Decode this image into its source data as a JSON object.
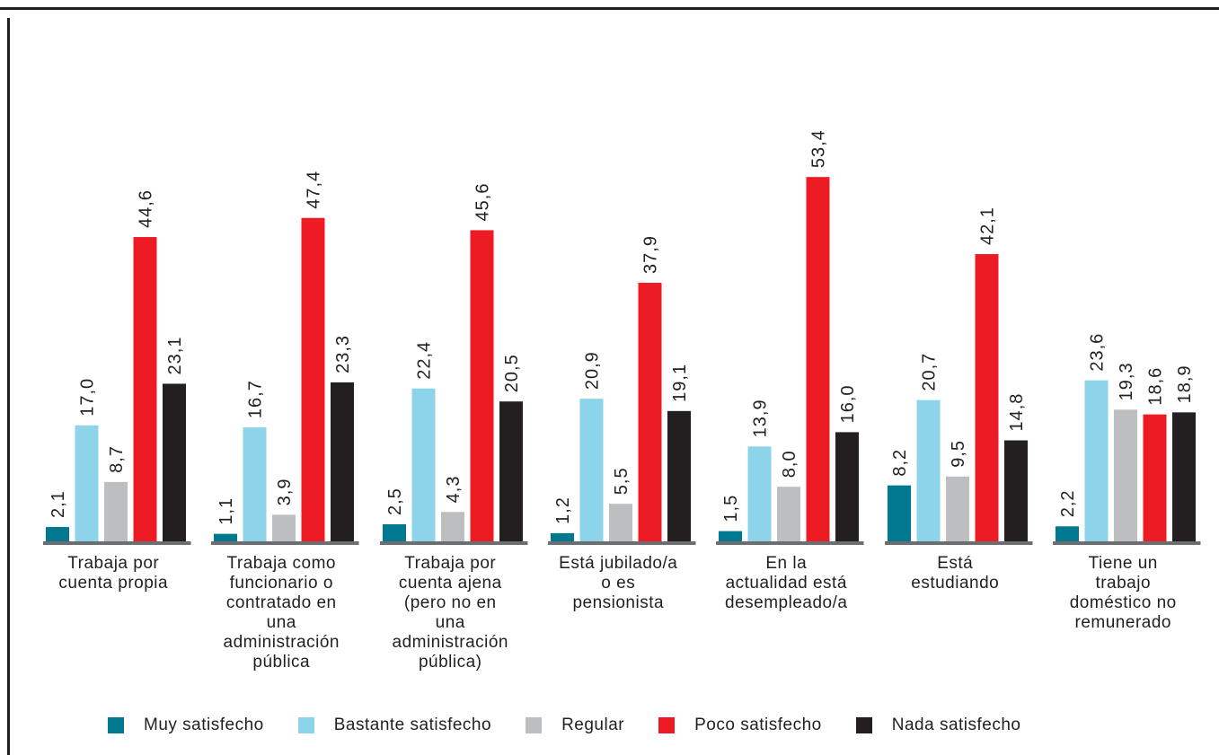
{
  "chart_data": {
    "type": "bar",
    "title": "",
    "xlabel": "",
    "ylabel": "",
    "ylim": [
      0,
      60
    ],
    "categories": [
      [
        "Trabaja por",
        "cuenta propia"
      ],
      [
        "Trabaja como",
        "funcionario o",
        "contratado en",
        "una",
        "administración",
        "pública"
      ],
      [
        "Trabaja por",
        "cuenta ajena",
        "(pero no en",
        "una",
        "administración",
        "pública)"
      ],
      [
        "Está jubilado/a",
        "o es",
        "pensionista"
      ],
      [
        "En la",
        "actualidad está",
        "desempleado/a"
      ],
      [
        "Está",
        "estudiando"
      ],
      [
        "Tiene un",
        "trabajo",
        "doméstico no",
        "remunerado"
      ]
    ],
    "series": [
      {
        "name": "Muy satisfecho",
        "color": "#00788f",
        "values": [
          2.1,
          1.1,
          2.5,
          1.2,
          1.5,
          8.2,
          2.2
        ],
        "labels": [
          "2,1",
          "1,1",
          "2,5",
          "1,2",
          "1,5",
          "8,2",
          "2,2"
        ]
      },
      {
        "name": "Bastante satisfecho",
        "color": "#8dd3ea",
        "values": [
          17.0,
          16.7,
          22.4,
          20.9,
          13.9,
          20.7,
          23.6
        ],
        "labels": [
          "17,0",
          "16,7",
          "22,4",
          "20,9",
          "13,9",
          "20,7",
          "23,6"
        ]
      },
      {
        "name": "Regular",
        "color": "#bcbec0",
        "values": [
          8.7,
          3.9,
          4.3,
          5.5,
          8.0,
          9.5,
          19.3
        ],
        "labels": [
          "8,7",
          "3,9",
          "4,3",
          "5,5",
          "8,0",
          "9,5",
          "19,3"
        ]
      },
      {
        "name": "Poco satisfecho",
        "color": "#ed1c24",
        "values": [
          44.6,
          47.4,
          45.6,
          37.9,
          53.4,
          42.1,
          18.6
        ],
        "labels": [
          "44,6",
          "47,4",
          "45,6",
          "37,9",
          "53,4",
          "42,1",
          "18,6"
        ]
      },
      {
        "name": "Nada satisfecho",
        "color": "#231f20",
        "values": [
          23.1,
          23.3,
          20.5,
          19.1,
          16.0,
          14.8,
          18.9
        ],
        "labels": [
          "23,1",
          "23,3",
          "20,5",
          "19,1",
          "16,0",
          "14,8",
          "18,9"
        ]
      }
    ],
    "grid": false,
    "legend_position": "bottom"
  }
}
